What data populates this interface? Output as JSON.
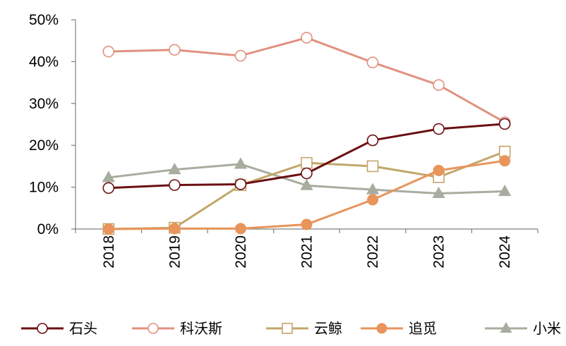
{
  "chart_data": {
    "type": "line",
    "title": "",
    "xlabel": "",
    "ylabel": "",
    "categories": [
      "2018",
      "2019",
      "2020",
      "2021",
      "2022",
      "2023",
      "2024"
    ],
    "ylim": [
      0,
      50
    ],
    "yticks": [
      "0%",
      "10%",
      "20%",
      "30%",
      "40%",
      "50%"
    ],
    "grid": false,
    "legend_position": "bottom",
    "series": [
      {
        "name": "石头",
        "values": [
          9.8,
          10.5,
          10.7,
          13.3,
          21.2,
          23.9,
          25.1
        ],
        "color": "#6b0f12",
        "marker": "circle-open"
      },
      {
        "name": "科沃斯",
        "values": [
          42.4,
          42.8,
          41.4,
          45.7,
          39.8,
          34.4,
          25.5
        ],
        "color": "#e0917f",
        "marker": "circle-open"
      },
      {
        "name": "云鲸",
        "values": [
          0.0,
          0.3,
          10.5,
          15.8,
          15.0,
          12.4,
          18.5
        ],
        "color": "#c2a76a",
        "marker": "square-open"
      },
      {
        "name": "追觅",
        "values": [
          0.0,
          0.1,
          0.1,
          1.1,
          7.0,
          14.0,
          16.3
        ],
        "color": "#e8945a",
        "marker": "circle-filled"
      },
      {
        "name": "小米",
        "values": [
          12.3,
          14.2,
          15.5,
          10.4,
          9.4,
          8.5,
          9.0
        ],
        "color": "#a7ad9f",
        "marker": "triangle-filled"
      }
    ]
  }
}
